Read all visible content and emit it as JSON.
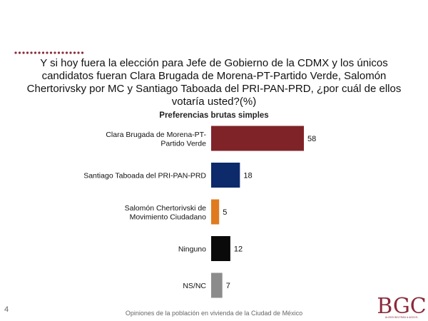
{
  "question": "Y si hoy fuera la elección para Jefe de Gobierno de la CDMX y los únicos candidatos fueran Clara Brugada de Morena-PT-Partido Verde, Salomón Chertorivsky por MC y Santiago Taboada del PRI-PAN-PRD, ¿por cuál de ellos votaría usted?(%)",
  "footer": "Opiniones de la población en vivienda de la Ciudad de México",
  "page_number": "4",
  "logo": {
    "text": "BGC",
    "subtitle": "ULISES BELTRÁN & ASOCS."
  },
  "colors": {
    "accent": "#8a2a3a",
    "dots": "#8a2a3a"
  },
  "chart_data": {
    "type": "bar",
    "orientation": "horizontal",
    "title": "Preferencias brutas simples",
    "categories": [
      [
        "Clara Brugada de Morena-PT-",
        "Partido Verde"
      ],
      [
        "Santiago Taboada del PRI-PAN-PRD"
      ],
      [
        "Salomón Chertorivski de",
        "Movimiento Ciudadano"
      ],
      [
        "Ninguno"
      ],
      [
        "NS/NC"
      ]
    ],
    "values": [
      58,
      18,
      5,
      12,
      7
    ],
    "value_labels": [
      "58",
      "18",
      "5",
      "12",
      "7"
    ],
    "colors": [
      "#7f2328",
      "#0d2a6b",
      "#e07a1f",
      "#0a0a0a",
      "#8c8c8c"
    ],
    "xlim": [
      0,
      58
    ],
    "grid": false,
    "legend": "none"
  }
}
